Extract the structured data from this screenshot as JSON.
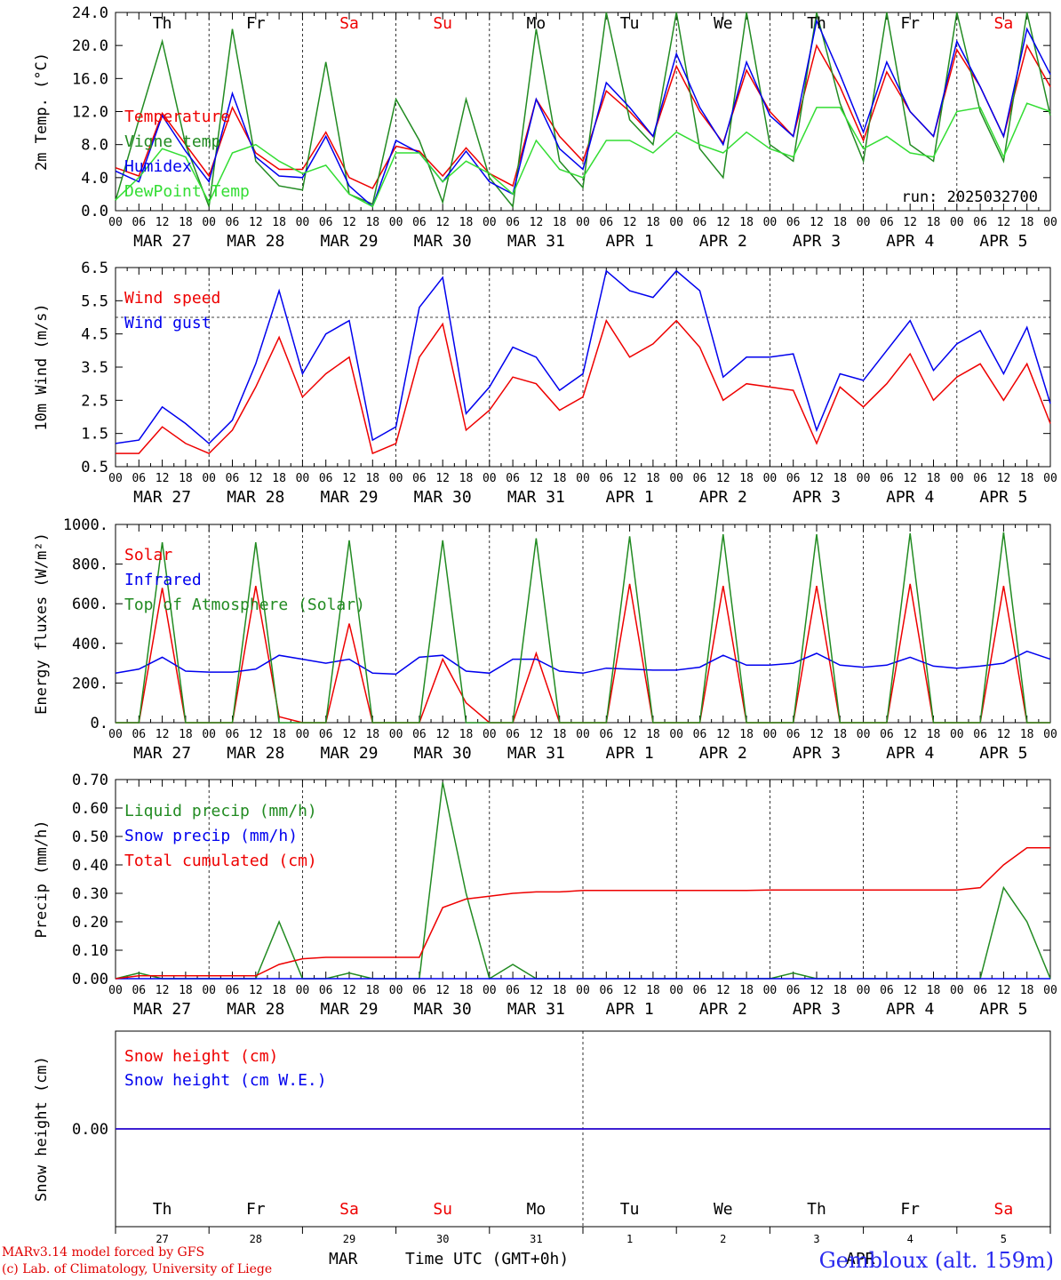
{
  "colors": {
    "temperature": "#ee0000",
    "vigne": "#228b22",
    "humidex": "#0000ee",
    "dewpoint": "#33dd33",
    "axis": "#000000",
    "weekend": "#ee0000",
    "footer_blue": "#2a2aee"
  },
  "run_label": "run: 2025032700",
  "footer": {
    "credit_line1": "MARv3.14 model forced by GFS",
    "credit_line2": "(c) Lab. of Climatology, University of Liege",
    "station": "Gembloux (alt. 159m)",
    "xaxis_title": "Time UTC (GMT+0h)",
    "month_start": "MAR",
    "month_end": "APR"
  },
  "days": [
    {
      "abbr": "Th",
      "date": "MAR 27",
      "num": "27",
      "weekend": false
    },
    {
      "abbr": "Fr",
      "date": "MAR 28",
      "num": "28",
      "weekend": false
    },
    {
      "abbr": "Sa",
      "date": "MAR 29",
      "num": "29",
      "weekend": true
    },
    {
      "abbr": "Su",
      "date": "MAR 30",
      "num": "30",
      "weekend": true
    },
    {
      "abbr": "Mo",
      "date": "MAR 31",
      "num": "31",
      "weekend": false
    },
    {
      "abbr": "Tu",
      "date": "APR  1",
      "num": "1",
      "weekend": false
    },
    {
      "abbr": "We",
      "date": "APR  2",
      "num": "2",
      "weekend": false
    },
    {
      "abbr": "Th",
      "date": "APR  3",
      "num": "3",
      "weekend": false
    },
    {
      "abbr": "Fr",
      "date": "APR  4",
      "num": "4",
      "weekend": false
    },
    {
      "abbr": "Sa",
      "date": "APR  5",
      "num": "5",
      "weekend": true
    }
  ],
  "hour_ticks": [
    "00",
    "06",
    "12",
    "18"
  ],
  "chart_data": [
    {
      "type": "line",
      "ylabel": "2m Temp. (°C)",
      "ylim": [
        0,
        24
      ],
      "yticks": [
        "0.0",
        "4.0",
        "8.0",
        "12.0",
        "16.0",
        "20.0",
        "24.0"
      ],
      "x_hours": [
        0,
        6,
        12,
        18,
        24,
        30,
        36,
        42,
        48,
        54,
        60,
        66,
        72,
        78,
        84,
        90,
        96,
        102,
        108,
        114,
        120,
        126,
        132,
        138,
        144,
        150,
        156,
        162,
        168,
        174,
        180,
        186,
        192,
        198,
        204,
        210,
        216,
        222,
        228,
        234,
        240
      ],
      "series": [
        {
          "name": "Temperature",
          "color": "#ee0000",
          "values": [
            5.2,
            4.2,
            11.8,
            8.0,
            4.2,
            12.5,
            7.0,
            5.0,
            5.0,
            9.5,
            4.0,
            2.7,
            7.8,
            7.2,
            4.2,
            7.6,
            4.5,
            3.0,
            13.5,
            9.0,
            6.0,
            14.5,
            12.0,
            9.0,
            17.5,
            12.0,
            8.2,
            17.0,
            12.0,
            9.0,
            20.0,
            15.0,
            8.5,
            16.8,
            12.0,
            9.0,
            19.5,
            15.0,
            9.0,
            20.0,
            15.0
          ]
        },
        {
          "name": "Vigne temp",
          "color": "#228b22",
          "values": [
            1.2,
            11.0,
            20.5,
            8.0,
            0.5,
            22.0,
            6.0,
            3.0,
            2.5,
            18.0,
            2.0,
            0.8,
            13.5,
            8.5,
            1.0,
            13.5,
            4.0,
            0.5,
            22.0,
            6.0,
            2.8,
            24.0,
            11.0,
            8.0,
            24.0,
            7.5,
            4.0,
            24.0,
            8.0,
            6.0,
            24.0,
            13.0,
            6.0,
            24.0,
            8.0,
            6.0,
            24.0,
            12.0,
            6.0,
            24.0,
            11.5
          ]
        },
        {
          "name": "Humidex",
          "color": "#0000ee",
          "values": [
            4.8,
            3.5,
            11.5,
            7.2,
            3.5,
            14.2,
            6.5,
            4.2,
            4.0,
            9.0,
            3.0,
            0.5,
            8.5,
            7.0,
            3.5,
            7.2,
            3.5,
            2.0,
            13.5,
            7.5,
            5.0,
            15.5,
            12.5,
            9.0,
            19.0,
            12.5,
            8.0,
            18.0,
            11.5,
            9.0,
            23.0,
            16.5,
            9.5,
            18.0,
            12.0,
            9.0,
            20.5,
            15.0,
            9.0,
            22.0,
            16.5
          ]
        },
        {
          "name": "DewPoint Temp",
          "color": "#33dd33",
          "values": [
            1.3,
            4.0,
            7.5,
            6.5,
            1.0,
            7.0,
            8.0,
            6.0,
            4.5,
            5.5,
            2.0,
            0.5,
            7.0,
            7.0,
            3.5,
            6.0,
            4.5,
            2.0,
            8.5,
            5.0,
            4.0,
            8.5,
            8.5,
            7.0,
            9.5,
            8.0,
            7.0,
            9.5,
            7.5,
            6.5,
            12.5,
            12.5,
            7.5,
            9.0,
            7.0,
            6.5,
            12.0,
            12.5,
            6.5,
            13.0,
            12.0
          ]
        }
      ],
      "annotation": "run: 2025032700"
    },
    {
      "type": "line",
      "ylabel": "10m Wind (m/s)",
      "ylim": [
        0.5,
        6.5
      ],
      "yticks": [
        "0.5",
        "1.5",
        "2.5",
        "3.5",
        "4.5",
        "5.5",
        "6.5"
      ],
      "ref_line": 5.0,
      "x_hours": [
        0,
        6,
        12,
        18,
        24,
        30,
        36,
        42,
        48,
        54,
        60,
        66,
        72,
        78,
        84,
        90,
        96,
        102,
        108,
        114,
        120,
        126,
        132,
        138,
        144,
        150,
        156,
        162,
        168,
        174,
        180,
        186,
        192,
        198,
        204,
        210,
        216,
        222,
        228,
        234,
        240
      ],
      "series": [
        {
          "name": "Wind speed",
          "color": "#ee0000",
          "values": [
            0.9,
            0.9,
            1.7,
            1.2,
            0.9,
            1.6,
            2.9,
            4.4,
            2.6,
            3.3,
            3.8,
            0.9,
            1.2,
            3.8,
            4.8,
            1.6,
            2.2,
            3.2,
            3.0,
            2.2,
            2.6,
            4.9,
            3.8,
            4.2,
            4.9,
            4.1,
            2.5,
            3.0,
            2.9,
            2.8,
            1.2,
            2.9,
            2.3,
            3.0,
            3.9,
            2.5,
            3.2,
            3.6,
            2.5,
            3.6,
            1.8
          ]
        },
        {
          "name": "Wind gust",
          "color": "#0000ee",
          "values": [
            1.2,
            1.3,
            2.3,
            1.8,
            1.2,
            1.9,
            3.6,
            5.8,
            3.3,
            4.5,
            4.9,
            1.3,
            1.7,
            5.3,
            6.2,
            2.1,
            2.9,
            4.1,
            3.8,
            2.8,
            3.3,
            6.4,
            5.8,
            5.6,
            6.4,
            5.8,
            3.2,
            3.8,
            3.8,
            3.9,
            1.6,
            3.3,
            3.1,
            4.0,
            4.9,
            3.4,
            4.2,
            4.6,
            3.3,
            4.7,
            2.4
          ]
        }
      ]
    },
    {
      "type": "line",
      "ylabel": "Energy fluxes (W/m²)",
      "ylim": [
        0,
        1000
      ],
      "yticks": [
        "0.",
        "200.",
        "400.",
        "600.",
        "800.",
        "1000."
      ],
      "x_hours": [
        0,
        6,
        12,
        18,
        24,
        30,
        36,
        42,
        48,
        54,
        60,
        66,
        72,
        78,
        84,
        90,
        96,
        102,
        108,
        114,
        120,
        126,
        132,
        138,
        144,
        150,
        156,
        162,
        168,
        174,
        180,
        186,
        192,
        198,
        204,
        210,
        216,
        222,
        228,
        234,
        240
      ],
      "series": [
        {
          "name": "Solar",
          "color": "#ee0000",
          "values": [
            0,
            0,
            680,
            0,
            0,
            0,
            690,
            30,
            0,
            0,
            500,
            0,
            0,
            0,
            320,
            100,
            0,
            0,
            350,
            0,
            0,
            0,
            700,
            0,
            0,
            0,
            690,
            0,
            0,
            0,
            690,
            0,
            0,
            0,
            700,
            0,
            0,
            0,
            690,
            0,
            0
          ]
        },
        {
          "name": "Infrared",
          "color": "#0000ee",
          "values": [
            250,
            270,
            330,
            260,
            255,
            255,
            270,
            340,
            320,
            300,
            320,
            250,
            245,
            330,
            340,
            260,
            250,
            320,
            320,
            260,
            250,
            275,
            270,
            265,
            265,
            280,
            340,
            290,
            290,
            300,
            350,
            290,
            280,
            290,
            330,
            285,
            275,
            285,
            300,
            360,
            320
          ]
        },
        {
          "name": "Top of Atmosphere (Solar)",
          "color": "#228b22",
          "values": [
            0,
            0,
            910,
            0,
            0,
            0,
            910,
            0,
            0,
            0,
            920,
            0,
            0,
            0,
            920,
            0,
            0,
            0,
            930,
            0,
            0,
            0,
            940,
            0,
            0,
            0,
            950,
            0,
            0,
            0,
            950,
            0,
            0,
            0,
            955,
            0,
            0,
            0,
            960,
            0,
            0
          ]
        }
      ]
    },
    {
      "type": "line",
      "ylabel": "Precip (mm/h)",
      "ylim": [
        0,
        0.7
      ],
      "yticks": [
        "0.00",
        "0.10",
        "0.20",
        "0.30",
        "0.40",
        "0.50",
        "0.60",
        "0.70"
      ],
      "x_hours": [
        0,
        6,
        12,
        18,
        24,
        30,
        36,
        42,
        48,
        54,
        60,
        66,
        72,
        78,
        84,
        90,
        96,
        102,
        108,
        114,
        120,
        126,
        132,
        138,
        144,
        150,
        156,
        162,
        168,
        174,
        180,
        186,
        192,
        198,
        204,
        210,
        216,
        222,
        228,
        234,
        240
      ],
      "series": [
        {
          "name": "Liquid precip (mm/h)",
          "color": "#228b22",
          "values": [
            0,
            0.02,
            0,
            0,
            0,
            0,
            0,
            0.2,
            0,
            0,
            0.02,
            0,
            0,
            0,
            0.69,
            0.3,
            0,
            0.05,
            0,
            0,
            0,
            0,
            0,
            0,
            0,
            0,
            0,
            0,
            0,
            0.02,
            0,
            0,
            0,
            0,
            0,
            0,
            0,
            0,
            0.32,
            0.2,
            0
          ]
        },
        {
          "name": "Snow precip (mm/h)",
          "color": "#0000ee",
          "values": [
            0,
            0,
            0,
            0,
            0,
            0,
            0,
            0,
            0,
            0,
            0,
            0,
            0,
            0,
            0,
            0,
            0,
            0,
            0,
            0,
            0,
            0,
            0,
            0,
            0,
            0,
            0,
            0,
            0,
            0,
            0,
            0,
            0,
            0,
            0,
            0,
            0,
            0,
            0,
            0,
            0
          ]
        },
        {
          "name": "Total cumulated (cm)",
          "color": "#ee0000",
          "values": [
            0,
            0.01,
            0.01,
            0.01,
            0.01,
            0.01,
            0.01,
            0.05,
            0.07,
            0.075,
            0.075,
            0.075,
            0.075,
            0.075,
            0.25,
            0.28,
            0.29,
            0.3,
            0.305,
            0.305,
            0.31,
            0.31,
            0.31,
            0.31,
            0.31,
            0.31,
            0.31,
            0.31,
            0.312,
            0.312,
            0.312,
            0.312,
            0.312,
            0.312,
            0.312,
            0.312,
            0.312,
            0.32,
            0.4,
            0.46,
            0.46
          ]
        }
      ]
    },
    {
      "type": "line",
      "ylabel": "Snow height (cm)",
      "ylim": [
        -1,
        1
      ],
      "yticks": [
        "0.00"
      ],
      "x_hours": [
        0,
        240
      ],
      "series": [
        {
          "name": "Snow height (cm)",
          "color": "#ee0000",
          "values": [
            0,
            0
          ]
        },
        {
          "name": "Snow height (cm W.E.)",
          "color": "#0000ee",
          "values": [
            0,
            0
          ]
        }
      ]
    }
  ]
}
